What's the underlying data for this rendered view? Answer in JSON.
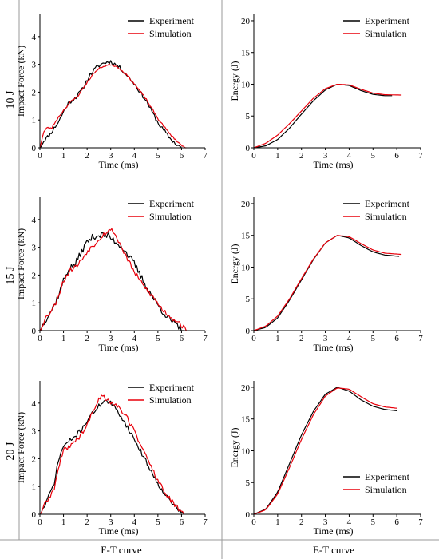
{
  "row_labels": [
    "10 J",
    "15 J",
    "20 J"
  ],
  "column_labels": [
    "F-T curve",
    "E-T curve"
  ],
  "legend_labels": [
    "Experiment",
    "Simulation"
  ],
  "colors": {
    "experiment": "#000000",
    "simulation": "#e8000b",
    "frame": "#000000",
    "separator": "#9a9a9a"
  },
  "chart_data": [
    {
      "type": "line",
      "panel": "10 J F-T",
      "xlabel": "Time (ms)",
      "ylabel": "Impact Force (kN)",
      "xlim": [
        0,
        7
      ],
      "ylim": [
        0,
        4.8
      ],
      "xticks": [
        0,
        1,
        2,
        3,
        4,
        5,
        6,
        7
      ],
      "yticks": [
        0,
        1,
        2,
        3,
        4
      ],
      "legend_position": "top-right",
      "series": [
        {
          "name": "Experiment",
          "noise": 0.07,
          "seed": 11,
          "x": [
            0,
            0.2,
            0.4,
            0.6,
            0.8,
            1.0,
            1.2,
            1.5,
            1.8,
            2.1,
            2.4,
            2.7,
            3.0,
            3.3,
            3.6,
            4.0,
            4.5,
            5.0,
            5.5,
            5.8,
            6.0
          ],
          "y": [
            0,
            0.3,
            0.45,
            0.7,
            0.95,
            1.3,
            1.6,
            1.8,
            2.1,
            2.6,
            2.9,
            3.05,
            3.1,
            2.95,
            2.7,
            2.3,
            1.7,
            0.9,
            0.35,
            0.1,
            0.02
          ]
        },
        {
          "name": "Simulation",
          "noise": 0.03,
          "seed": 23,
          "x": [
            0,
            0.15,
            0.3,
            0.5,
            0.7,
            1.0,
            1.3,
            1.6,
            2.0,
            2.3,
            2.6,
            3.0,
            3.3,
            3.7,
            4.0,
            4.5,
            5.0,
            5.5,
            6.0,
            6.2
          ],
          "y": [
            0,
            0.55,
            0.72,
            0.7,
            1.0,
            1.35,
            1.65,
            1.85,
            2.35,
            2.7,
            2.9,
            3.0,
            2.9,
            2.6,
            2.3,
            1.75,
            1.05,
            0.5,
            0.08,
            0.0
          ]
        }
      ]
    },
    {
      "type": "line",
      "panel": "10 J E-T",
      "xlabel": "Time (ms)",
      "ylabel": "Energy (J)",
      "xlim": [
        0,
        7
      ],
      "ylim": [
        0,
        21
      ],
      "xticks": [
        0,
        1,
        2,
        3,
        4,
        5,
        6,
        7
      ],
      "yticks": [
        0,
        5,
        10,
        15,
        20
      ],
      "legend_position": "top-right",
      "series": [
        {
          "name": "Experiment",
          "x": [
            0,
            0.5,
            1.0,
            1.5,
            2.0,
            2.5,
            3.0,
            3.5,
            4.0,
            4.5,
            5.0,
            5.5,
            5.8
          ],
          "y": [
            0,
            0.3,
            1.3,
            3.1,
            5.3,
            7.4,
            9.1,
            10.0,
            9.8,
            9.0,
            8.4,
            8.2,
            8.2
          ]
        },
        {
          "name": "Simulation",
          "x": [
            0,
            0.5,
            1.0,
            1.5,
            2.0,
            2.5,
            3.0,
            3.5,
            4.0,
            4.5,
            5.0,
            5.5,
            6.2
          ],
          "y": [
            0,
            0.7,
            2.0,
            3.8,
            5.8,
            7.8,
            9.3,
            10.0,
            9.9,
            9.2,
            8.6,
            8.35,
            8.3
          ]
        }
      ]
    },
    {
      "type": "line",
      "panel": "15 J F-T",
      "xlabel": "Time (ms)",
      "ylabel": "Impact Force (kN)",
      "xlim": [
        0,
        7
      ],
      "ylim": [
        0,
        4.8
      ],
      "xticks": [
        0,
        1,
        2,
        3,
        4,
        5,
        6,
        7
      ],
      "yticks": [
        0,
        1,
        2,
        3,
        4
      ],
      "legend_position": "top-right",
      "series": [
        {
          "name": "Experiment",
          "noise": 0.12,
          "seed": 37,
          "x": [
            0,
            0.2,
            0.4,
            0.6,
            0.8,
            1.0,
            1.2,
            1.5,
            1.8,
            2.0,
            2.3,
            2.6,
            2.9,
            3.2,
            3.5,
            4.0,
            4.5,
            5.0,
            5.5,
            5.9,
            6.1
          ],
          "y": [
            0,
            0.35,
            0.6,
            0.9,
            1.3,
            1.8,
            2.2,
            2.4,
            2.9,
            3.2,
            3.4,
            3.45,
            3.4,
            3.2,
            3.0,
            2.4,
            1.6,
            0.9,
            0.4,
            0.1,
            0.0
          ]
        },
        {
          "name": "Simulation",
          "noise": 0.09,
          "seed": 53,
          "x": [
            0,
            0.2,
            0.4,
            0.6,
            0.8,
            1.0,
            1.3,
            1.6,
            2.0,
            2.3,
            2.6,
            2.9,
            3.1,
            3.4,
            3.7,
            4.0,
            4.4,
            4.8,
            5.2,
            5.6,
            5.9,
            6.2
          ],
          "y": [
            0,
            0.4,
            0.65,
            0.85,
            1.3,
            1.8,
            2.2,
            2.35,
            2.85,
            3.1,
            3.4,
            3.6,
            3.6,
            3.1,
            2.6,
            2.1,
            1.6,
            1.2,
            0.75,
            0.45,
            0.3,
            0.0
          ]
        }
      ]
    },
    {
      "type": "line",
      "panel": "15 J E-T",
      "xlabel": "Time (ms)",
      "ylabel": "Energy (J)",
      "xlim": [
        0,
        7
      ],
      "ylim": [
        0,
        21
      ],
      "xticks": [
        0,
        1,
        2,
        3,
        4,
        5,
        6,
        7
      ],
      "yticks": [
        0,
        5,
        10,
        15,
        20
      ],
      "legend_position": "top-right",
      "series": [
        {
          "name": "Experiment",
          "x": [
            0,
            0.5,
            1.0,
            1.5,
            2.0,
            2.5,
            3.0,
            3.5,
            4.0,
            4.5,
            5.0,
            5.5,
            6.1
          ],
          "y": [
            0,
            0.5,
            2.0,
            4.8,
            8.0,
            11.2,
            13.8,
            15.0,
            14.6,
            13.4,
            12.4,
            11.9,
            11.7
          ]
        },
        {
          "name": "Simulation",
          "x": [
            0,
            0.5,
            1.0,
            1.5,
            2.0,
            2.5,
            3.0,
            3.5,
            4.0,
            4.5,
            5.0,
            5.5,
            6.2
          ],
          "y": [
            0,
            0.7,
            2.3,
            5.0,
            8.2,
            11.3,
            13.8,
            15.0,
            14.8,
            13.7,
            12.7,
            12.2,
            12.0
          ]
        }
      ]
    },
    {
      "type": "line",
      "panel": "20 J F-T",
      "xlabel": "Time (ms)",
      "ylabel": "Impact Force (kN)",
      "xlim": [
        0,
        7
      ],
      "ylim": [
        0,
        4.8
      ],
      "xticks": [
        0,
        1,
        2,
        3,
        4,
        5,
        6,
        7
      ],
      "yticks": [
        0,
        1,
        2,
        3,
        4
      ],
      "legend_position": "top-right",
      "series": [
        {
          "name": "Experiment",
          "noise": 0.08,
          "seed": 71,
          "x": [
            0,
            0.2,
            0.4,
            0.6,
            0.8,
            1.0,
            1.2,
            1.5,
            1.8,
            2.1,
            2.4,
            2.7,
            3.0,
            3.3,
            3.6,
            4.0,
            4.5,
            5.0,
            5.5,
            6.0,
            6.1
          ],
          "y": [
            0,
            0.3,
            0.7,
            1.1,
            2.0,
            2.45,
            2.6,
            2.8,
            3.1,
            3.5,
            3.8,
            4.1,
            4.0,
            3.7,
            3.3,
            2.7,
            1.9,
            1.1,
            0.5,
            0.05,
            0.0
          ]
        },
        {
          "name": "Simulation",
          "noise": 0.09,
          "seed": 89,
          "x": [
            0,
            0.2,
            0.4,
            0.6,
            0.8,
            1.0,
            1.3,
            1.6,
            2.0,
            2.3,
            2.6,
            2.9,
            3.2,
            3.6,
            4.0,
            4.5,
            5.0,
            5.5,
            6.0,
            6.1
          ],
          "y": [
            0,
            0.35,
            0.6,
            0.9,
            1.7,
            2.3,
            2.5,
            2.7,
            3.2,
            3.8,
            4.3,
            4.1,
            3.95,
            3.6,
            3.0,
            2.1,
            1.2,
            0.55,
            0.05,
            0.0
          ]
        }
      ]
    },
    {
      "type": "line",
      "panel": "20 J E-T",
      "xlabel": "Time (ms)",
      "ylabel": "Energy (J)",
      "xlim": [
        0,
        7
      ],
      "ylim": [
        0,
        21
      ],
      "xticks": [
        0,
        1,
        2,
        3,
        4,
        5,
        6,
        7
      ],
      "yticks": [
        0,
        5,
        10,
        15,
        20
      ],
      "legend_position": "bottom-right",
      "series": [
        {
          "name": "Experiment",
          "x": [
            0,
            0.5,
            1.0,
            1.5,
            2.0,
            2.5,
            3.0,
            3.5,
            4.0,
            4.5,
            5.0,
            5.5,
            6.0
          ],
          "y": [
            0,
            0.8,
            3.5,
            8.0,
            12.5,
            16.2,
            18.9,
            20.0,
            19.4,
            18.0,
            17.0,
            16.5,
            16.3
          ]
        },
        {
          "name": "Simulation",
          "x": [
            0,
            0.5,
            1.0,
            1.5,
            2.0,
            2.5,
            3.0,
            3.5,
            4.0,
            4.5,
            5.0,
            5.5,
            6.0
          ],
          "y": [
            0,
            0.7,
            3.2,
            7.4,
            11.8,
            15.7,
            18.6,
            19.9,
            19.7,
            18.5,
            17.4,
            16.9,
            16.7
          ]
        }
      ]
    }
  ]
}
